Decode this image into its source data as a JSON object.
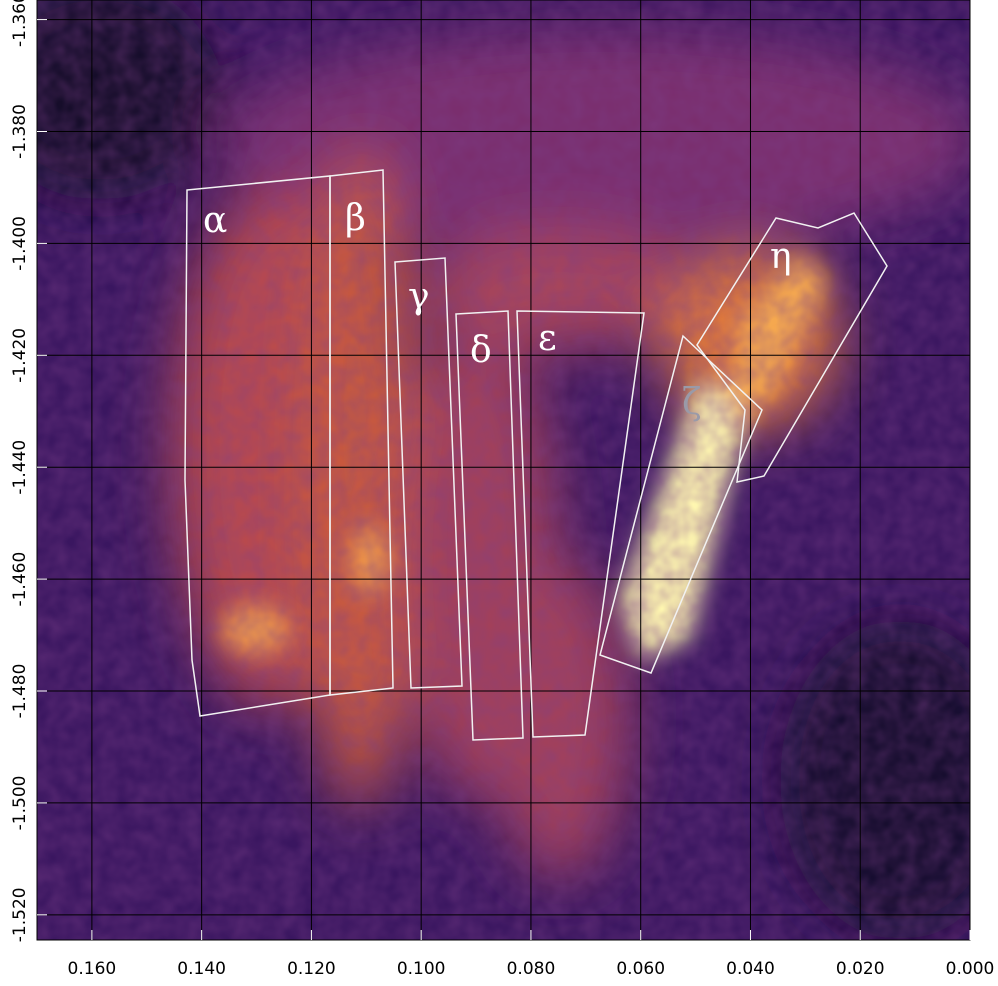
{
  "chart_data": {
    "type": "image",
    "xlim": [
      0.17,
      0.0
    ],
    "ylim": [
      -1.5245,
      -1.3565
    ],
    "xticks": [
      {
        "value": 0.16,
        "label": "0.160"
      },
      {
        "value": 0.14,
        "label": "0.140"
      },
      {
        "value": 0.12,
        "label": "0.120"
      },
      {
        "value": 0.1,
        "label": "0.100"
      },
      {
        "value": 0.08,
        "label": "0.080"
      },
      {
        "value": 0.06,
        "label": "0.060"
      },
      {
        "value": 0.04,
        "label": "0.040"
      },
      {
        "value": 0.02,
        "label": "0.020"
      },
      {
        "value": 0.0,
        "label": "0.000"
      }
    ],
    "yticks": [
      {
        "value": -1.36,
        "label": "-1.360"
      },
      {
        "value": -1.38,
        "label": "-1.380"
      },
      {
        "value": -1.4,
        "label": "-1.400"
      },
      {
        "value": -1.42,
        "label": "-1.420"
      },
      {
        "value": -1.44,
        "label": "-1.440"
      },
      {
        "value": -1.46,
        "label": "-1.460"
      },
      {
        "value": -1.48,
        "label": "-1.480"
      },
      {
        "value": -1.5,
        "label": "-1.500"
      },
      {
        "value": -1.52,
        "label": "-1.520"
      }
    ],
    "grid": true,
    "annotations": [
      "α",
      "β",
      "γ",
      "δ",
      "ε",
      "ζ",
      "η"
    ]
  }
}
